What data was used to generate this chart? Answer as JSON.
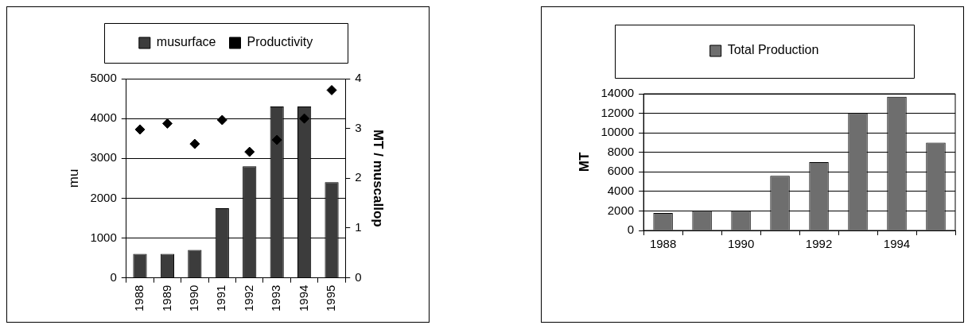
{
  "chart_data": [
    {
      "type": "bar",
      "ylabel": "mu",
      "y2label": "MT / muscallop",
      "categories": [
        "1988",
        "1989",
        "1990",
        "1991",
        "1992",
        "1993",
        "1994",
        "1995"
      ],
      "series": [
        {
          "name": "musurface",
          "type": "bar",
          "color": "#3c3c3c",
          "values": [
            600,
            600,
            700,
            1750,
            2800,
            4300,
            4300,
            2400
          ]
        },
        {
          "name": "Productivity",
          "type": "scatter",
          "axis": "y2",
          "color": "#000000",
          "marker": "diamond",
          "values": [
            2.98,
            3.1,
            2.69,
            3.17,
            2.53,
            2.77,
            3.2,
            3.77
          ]
        }
      ],
      "ylim": [
        0,
        5000
      ],
      "yticks": [
        0,
        1000,
        2000,
        3000,
        4000,
        5000
      ],
      "y2lim": [
        0,
        4
      ],
      "y2ticks": [
        0,
        1,
        2,
        3,
        4
      ],
      "grid": "y",
      "legend": "top"
    },
    {
      "type": "bar",
      "ylabel": "MT",
      "categories": [
        "1988",
        null,
        "1990",
        null,
        "1992",
        null,
        "1994",
        null
      ],
      "series": [
        {
          "name": "Total Production",
          "color": "#6e6e6e",
          "values": [
            1800,
            2000,
            2000,
            5600,
            7000,
            12000,
            13700,
            9000
          ]
        }
      ],
      "ylim": [
        0,
        14000
      ],
      "yticks": [
        0,
        2000,
        4000,
        6000,
        8000,
        10000,
        12000,
        14000
      ],
      "grid": "y",
      "legend": "top"
    }
  ]
}
